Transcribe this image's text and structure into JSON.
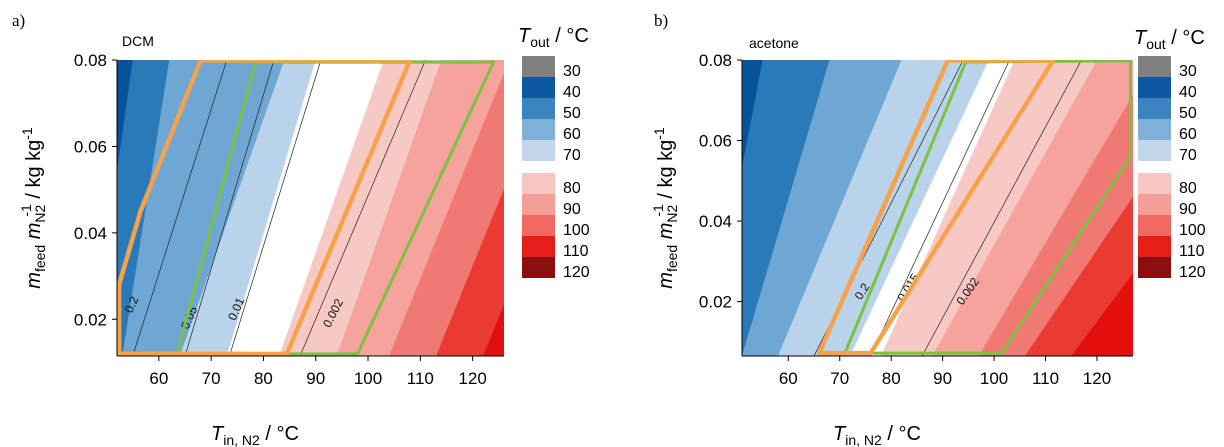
{
  "colors": {
    "legend_30": "#808080",
    "legend_40": "#0b57a0",
    "legend_50": "#3b84c0",
    "legend_60": "#7fb0d8",
    "legend_70": "#c3d7ec",
    "legend_80": "#f7c6c3",
    "legend_90": "#f59e98",
    "legend_100": "#f06a62",
    "legend_110": "#e61e1a",
    "legend_120": "#8a0f0f",
    "band_dark_blue": "#08529b",
    "band_blue": "#2a7ab9",
    "band_mid_blue": "#6ea7d3",
    "band_light_blue": "#b9d3ea",
    "band_white": "#ffffff",
    "band_light_red": "#f7c9c5",
    "band_salmon": "#f6a39d",
    "band_red": "#f07a73",
    "band_bright_red": "#ea3b33",
    "band_deep_red": "#e30e0e",
    "orange_outline": "#f7a24a",
    "green_outline": "#7cc142"
  },
  "chart_data": [
    {
      "type": "heatmap",
      "panel_label": "a)",
      "title": "DCM",
      "xlabel": "T",
      "xlabel_sub": "in, N2",
      "xlabel_unit": " / °C",
      "ylabel_prefix": "m",
      "ylabel_prefix_sub": "feed",
      "ylabel_mid": "m",
      "ylabel_mid_sub": "N2",
      "ylabel_mid_sup": "-1",
      "ylabel_unit": " / kg kg",
      "ylabel_unit_sup": "-1",
      "xlim": [
        52,
        126
      ],
      "ylim": [
        0.0115,
        0.08
      ],
      "x_ticks": [
        60,
        70,
        80,
        90,
        100,
        110,
        120
      ],
      "x_tick_labels": [
        "60",
        "70",
        "80",
        "90",
        "100",
        "110",
        "120"
      ],
      "y_ticks": [
        0.02,
        0.04,
        0.06,
        0.08
      ],
      "y_tick_labels": [
        "0.02",
        "0.04",
        "0.06",
        "0.08"
      ],
      "band_boundaries": [
        {
          "x_bottom": 47,
          "x_top": 55
        },
        {
          "x_bottom": 53,
          "x_top": 62
        },
        {
          "x_bottom": 64,
          "x_top": 84
        },
        {
          "x_bottom": 73,
          "x_top": 90
        },
        {
          "x_bottom": 83,
          "x_top": 103
        },
        {
          "x_bottom": 94,
          "x_top": 114
        },
        {
          "x_bottom": 104,
          "x_top": 127
        },
        {
          "x_bottom": 113,
          "x_top": 136
        },
        {
          "x_bottom": 122,
          "x_top": 145
        }
      ],
      "contour_lines": [
        {
          "label": "0.2",
          "x_bottom": 55,
          "x_top": 73,
          "label_x": 55.5,
          "label_y": 0.023,
          "angle": -66
        },
        {
          "label": "0.05",
          "x_bottom": 65,
          "x_top": 82,
          "label_x": 66.5,
          "label_y": 0.02,
          "angle": -66
        },
        {
          "label": "0.01",
          "x_bottom": 73.5,
          "x_top": 91,
          "label_x": 75.5,
          "label_y": 0.022,
          "angle": -66
        },
        {
          "label": "0.002",
          "x_bottom": 87,
          "x_top": 111,
          "label_x": 94,
          "label_y": 0.021,
          "angle": -63
        }
      ],
      "orange_region": [
        [
          52.4,
          0.012
        ],
        [
          52.4,
          0.028
        ],
        [
          56.5,
          0.045
        ],
        [
          68,
          0.0799
        ],
        [
          108,
          0.0799
        ],
        [
          84.5,
          0.012
        ]
      ],
      "green_region": [
        [
          63.5,
          0.012
        ],
        [
          78.5,
          0.0795
        ],
        [
          124,
          0.0795
        ],
        [
          98,
          0.012
        ]
      ],
      "legend": {
        "title": "T",
        "title_sub": "out",
        "title_unit": " / °C",
        "entries": [
          "30",
          "40",
          "50",
          "60",
          "70",
          "80",
          "90",
          "100",
          "110",
          "120"
        ]
      }
    },
    {
      "type": "heatmap",
      "panel_label": "b)",
      "title": "acetone",
      "xlabel": "T",
      "xlabel_sub": "in, N2",
      "xlabel_unit": " / °C",
      "ylabel_prefix": "m",
      "ylabel_prefix_sub": "feed",
      "ylabel_mid": "m",
      "ylabel_mid_sub": "N2",
      "ylabel_mid_sup": "-1",
      "ylabel_unit": " / kg kg",
      "ylabel_unit_sup": "-1",
      "xlim": [
        51,
        127
      ],
      "ylim": [
        0.0065,
        0.08
      ],
      "x_ticks": [
        60,
        70,
        80,
        90,
        100,
        110,
        120
      ],
      "x_tick_labels": [
        "60",
        "70",
        "80",
        "90",
        "100",
        "110",
        "120"
      ],
      "y_ticks": [
        0.02,
        0.04,
        0.06,
        0.08
      ],
      "y_tick_labels": [
        "0.02",
        "0.04",
        "0.06",
        "0.08"
      ],
      "band_boundaries": [
        {
          "x_bottom": 44,
          "x_top": 55
        },
        {
          "x_bottom": 51,
          "x_top": 68
        },
        {
          "x_bottom": 58,
          "x_top": 82
        },
        {
          "x_bottom": 72,
          "x_top": 99
        },
        {
          "x_bottom": 78,
          "x_top": 104
        },
        {
          "x_bottom": 88,
          "x_top": 120
        },
        {
          "x_bottom": 97,
          "x_top": 131
        },
        {
          "x_bottom": 106,
          "x_top": 145
        },
        {
          "x_bottom": 115,
          "x_top": 158
        }
      ],
      "contour_lines": [
        {
          "label": "0.2",
          "x_bottom": 65,
          "x_top": 94,
          "label_x": 75,
          "label_y": 0.022,
          "angle": -58
        },
        {
          "label": "0.015",
          "x_bottom": 76,
          "x_top": 103,
          "label_x": 84,
          "label_y": 0.023,
          "angle": -58
        },
        {
          "label": "0.002",
          "x_bottom": 86,
          "x_top": 117,
          "label_x": 95.5,
          "label_y": 0.022,
          "angle": -55
        }
      ],
      "orange_region": [
        [
          66,
          0.0072
        ],
        [
          91,
          0.0799
        ],
        [
          111.5,
          0.0799
        ],
        [
          76,
          0.0072
        ]
      ],
      "green_region": [
        [
          71,
          0.0072
        ],
        [
          94.5,
          0.0795
        ],
        [
          126.5,
          0.0798
        ],
        [
          126.5,
          0.056
        ],
        [
          101.5,
          0.0072
        ]
      ],
      "legend": {
        "title": "T",
        "title_sub": "out",
        "title_unit": " / °C",
        "entries": [
          "30",
          "40",
          "50",
          "60",
          "70",
          "80",
          "90",
          "100",
          "110",
          "120"
        ]
      }
    }
  ]
}
